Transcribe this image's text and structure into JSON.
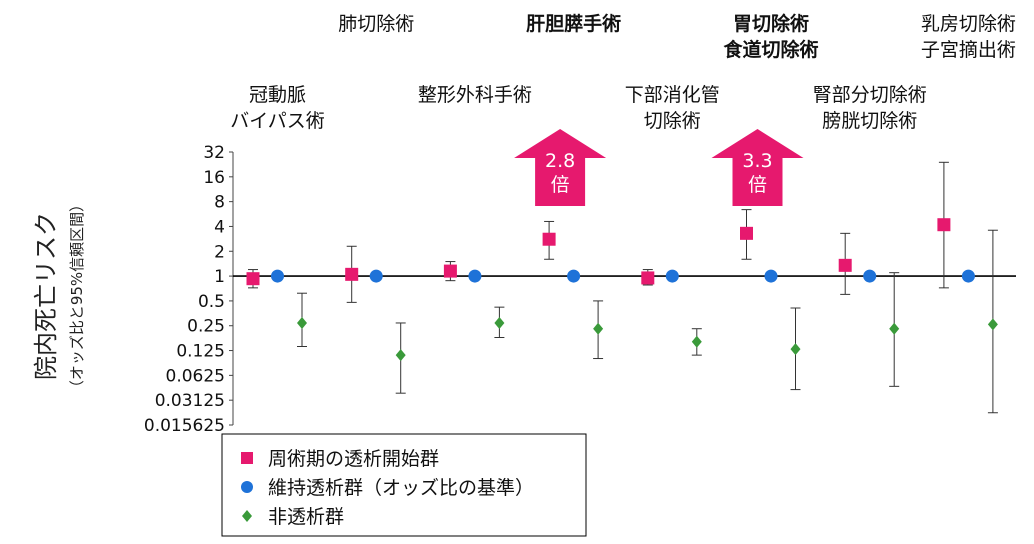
{
  "chart_data": {
    "type": "scatter",
    "y_scale": "log2",
    "ylim": [
      0.015625,
      32
    ],
    "yticks": [
      "32",
      "16",
      "8",
      "4",
      "2",
      "1",
      "0.5",
      "0.25",
      "0.125",
      "0.0625",
      "0.03125",
      "0.015625"
    ],
    "ylabel": "院内死亡リスク",
    "ylabel_sub": "（オッズ比と95%信頼区間）",
    "grid": false,
    "reference_line": 1,
    "categories": [
      {
        "lines": [
          "冠動脈",
          "バイパス術"
        ],
        "bold": false,
        "row": "lower"
      },
      {
        "lines": [
          "肺切除術"
        ],
        "bold": false,
        "row": "upper"
      },
      {
        "lines": [
          "整形外科手術"
        ],
        "bold": false,
        "row": "lower"
      },
      {
        "lines": [
          "肝胆膵手術"
        ],
        "bold": true,
        "row": "upper"
      },
      {
        "lines": [
          "下部消化管",
          "切除術"
        ],
        "bold": false,
        "row": "lower"
      },
      {
        "lines": [
          "胃切除術",
          "食道切除術"
        ],
        "bold": true,
        "row": "upper"
      },
      {
        "lines": [
          "腎部分切除術",
          "膀胱切除術"
        ],
        "bold": false,
        "row": "lower"
      },
      {
        "lines": [
          "乳房切除術",
          "子宮摘出術"
        ],
        "bold": false,
        "row": "upper"
      }
    ],
    "series": [
      {
        "name": "周術期の透析開始群",
        "marker": "square",
        "color": "#e6196e",
        "points": [
          {
            "y": 0.93,
            "lo": 0.72,
            "hi": 1.2
          },
          {
            "y": 1.05,
            "lo": 0.48,
            "hi": 2.3
          },
          {
            "y": 1.15,
            "lo": 0.88,
            "hi": 1.5
          },
          {
            "y": 2.8,
            "lo": 1.6,
            "hi": 4.6
          },
          {
            "y": 0.95,
            "lo": 0.78,
            "hi": 1.2
          },
          {
            "y": 3.3,
            "lo": 1.6,
            "hi": 6.4
          },
          {
            "y": 1.35,
            "lo": 0.6,
            "hi": 3.3
          },
          {
            "y": 4.2,
            "lo": 0.72,
            "hi": 24
          }
        ]
      },
      {
        "name": "維持透析群（オッズ比の基準）",
        "marker": "circle",
        "color": "#1e72d8",
        "points": [
          {
            "y": 1
          },
          {
            "y": 1
          },
          {
            "y": 1
          },
          {
            "y": 1
          },
          {
            "y": 1
          },
          {
            "y": 1
          },
          {
            "y": 1
          },
          {
            "y": 1
          }
        ]
      },
      {
        "name": "非透析群",
        "marker": "diamond",
        "color": "#3a9a3a",
        "points": [
          {
            "y": 0.27,
            "lo": 0.14,
            "hi": 0.62
          },
          {
            "y": 0.11,
            "lo": 0.038,
            "hi": 0.27
          },
          {
            "y": 0.27,
            "lo": 0.18,
            "hi": 0.42
          },
          {
            "y": 0.23,
            "lo": 0.1,
            "hi": 0.5
          },
          {
            "y": 0.16,
            "lo": 0.11,
            "hi": 0.23
          },
          {
            "y": 0.13,
            "lo": 0.042,
            "hi": 0.41
          },
          {
            "y": 0.23,
            "lo": 0.046,
            "hi": 1.1
          },
          {
            "y": 0.26,
            "lo": 0.022,
            "hi": 3.6
          }
        ]
      }
    ],
    "annotations": [
      {
        "category_index": 3,
        "text_lines": [
          "2.8",
          "倍"
        ],
        "color": "#e6196e"
      },
      {
        "category_index": 5,
        "text_lines": [
          "3.3",
          "倍"
        ],
        "color": "#e6196e"
      }
    ],
    "legend_position": "bottom-left"
  }
}
